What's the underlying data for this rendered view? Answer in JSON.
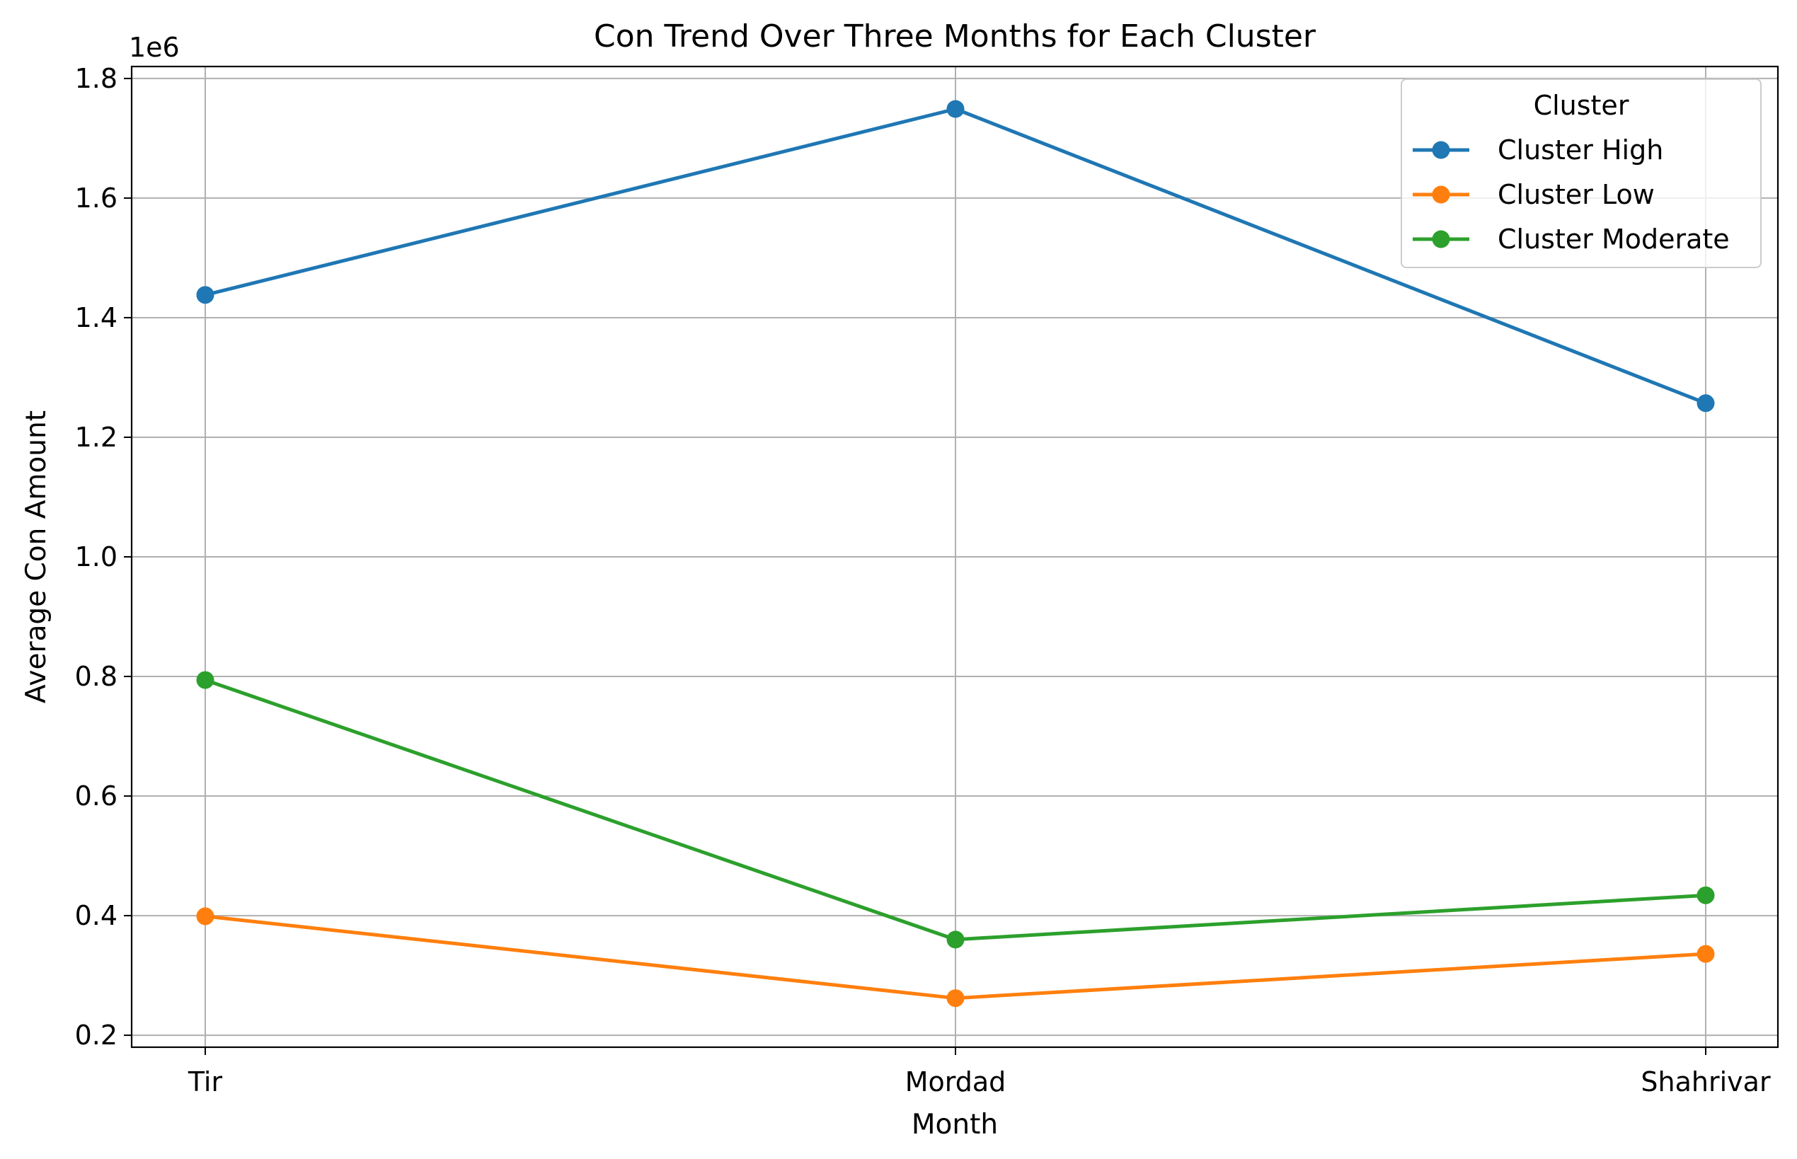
{
  "chart_data": {
    "type": "line",
    "title": "Con Trend Over Three Months for Each Cluster",
    "xlabel": "Month",
    "ylabel": "Average Con Amount",
    "y_offset_label": "1e6",
    "categories": [
      "Tir",
      "Mordad",
      "Shahrivar"
    ],
    "y_ticks": [
      0.2,
      0.4,
      0.6,
      0.8,
      1.0,
      1.2,
      1.4,
      1.6,
      1.8
    ],
    "y_tick_labels": [
      "0.2",
      "0.4",
      "0.6",
      "0.8",
      "1.0",
      "1.2",
      "1.4",
      "1.6",
      "1.8"
    ],
    "ylim": [
      0.18,
      1.82
    ],
    "y_scale_factor": 1000000,
    "grid": true,
    "legend": {
      "title": "Cluster",
      "placement": "top-right"
    },
    "series": [
      {
        "name": "Cluster High",
        "color": "#1f77b4",
        "values": [
          1.438,
          1.749,
          1.257
        ]
      },
      {
        "name": "Cluster Low",
        "color": "#ff7f0e",
        "values": [
          0.399,
          0.262,
          0.336
        ]
      },
      {
        "name": "Cluster Moderate",
        "color": "#2ca02c",
        "values": [
          0.794,
          0.36,
          0.434
        ]
      }
    ]
  }
}
